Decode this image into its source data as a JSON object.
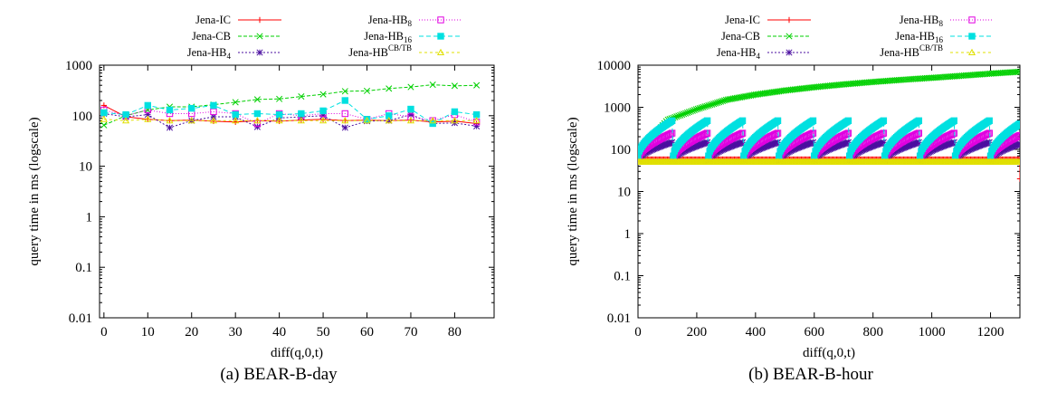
{
  "chart_data": [
    {
      "type": "line",
      "caption": "(a) BEAR-B-day",
      "xlabel": "diff(q,0,t)",
      "ylabel": "query time in ms (logscale)",
      "y_scale": "log",
      "xlim": [
        -1,
        89
      ],
      "ylim": [
        0.01,
        1000
      ],
      "x_ticks": [
        "0",
        "10",
        "20",
        "30",
        "40",
        "50",
        "60",
        "70",
        "80"
      ],
      "y_ticks": [
        "0.01",
        "0.1",
        "1",
        "10",
        "100",
        "1000"
      ],
      "legend_placement": "top (outside plot)",
      "x": [
        0,
        5,
        10,
        15,
        20,
        25,
        30,
        35,
        40,
        45,
        50,
        55,
        60,
        65,
        70,
        75,
        80,
        85
      ],
      "series": [
        {
          "name": "Jena-IC",
          "color": "#ff0000",
          "marker": "plus",
          "values": [
            160,
            95,
            85,
            80,
            82,
            78,
            75,
            80,
            78,
            82,
            85,
            80,
            82,
            80,
            82,
            75,
            78,
            70
          ]
        },
        {
          "name": "Jena-CB",
          "color": "#00d000",
          "marker": "cross",
          "values": [
            65,
            100,
            130,
            150,
            150,
            165,
            185,
            210,
            215,
            240,
            265,
            305,
            310,
            345,
            370,
            410,
            390,
            400
          ]
        },
        {
          "name": "Jena-HB4",
          "color": "#4b0fa0",
          "marker": "star",
          "values": [
            110,
            95,
            105,
            58,
            80,
            95,
            95,
            60,
            90,
            95,
            100,
            58,
            78,
            80,
            105,
            70,
            72,
            62
          ]
        },
        {
          "name": "Jena-HB8",
          "color": "#e000e0",
          "marker": "square-open",
          "values": [
            130,
            100,
            130,
            110,
            110,
            120,
            110,
            70,
            110,
            100,
            110,
            110,
            85,
            110,
            95,
            80,
            105,
            75
          ]
        },
        {
          "name": "Jena-HB16",
          "color": "#00e0e0",
          "marker": "square-filled",
          "values": [
            115,
            105,
            160,
            130,
            140,
            160,
            105,
            110,
            105,
            110,
            125,
            200,
            85,
            100,
            135,
            70,
            120,
            105
          ]
        },
        {
          "name": "Jena-HB",
          "superscript": "CB/TB",
          "color": "#e0e000",
          "marker": "triangle",
          "values": [
            85,
            80,
            85,
            80,
            80,
            80,
            80,
            80,
            80,
            80,
            80,
            80,
            80,
            80,
            80,
            80,
            80,
            80
          ]
        }
      ]
    },
    {
      "type": "line",
      "caption": "(b) BEAR-B-hour",
      "xlabel": "diff(q,0,t)",
      "ylabel": "query time in ms (logscale)",
      "y_scale": "log",
      "xlim": [
        0,
        1300
      ],
      "ylim": [
        0.01,
        10000
      ],
      "x_ticks": [
        "0",
        "200",
        "400",
        "600",
        "800",
        "1000",
        "1200"
      ],
      "y_ticks": [
        "0.01",
        "0.1",
        "1",
        "10",
        "100",
        "1000",
        "10000"
      ],
      "legend_placement": "top (outside plot)",
      "sawtooth_period": 120,
      "series": [
        {
          "name": "Jena-IC",
          "color": "#ff0000",
          "marker": "plus",
          "baseline": 58,
          "peak": 58,
          "end_drop": 20
        },
        {
          "name": "Jena-CB",
          "color": "#00d000",
          "marker": "cross",
          "points": [
            [
              0,
              55
            ],
            [
              50,
              200
            ],
            [
              100,
              500
            ],
            [
              200,
              900
            ],
            [
              300,
              1500
            ],
            [
              400,
              2000
            ],
            [
              500,
              2500
            ],
            [
              600,
              3000
            ],
            [
              700,
              3500
            ],
            [
              800,
              4000
            ],
            [
              900,
              4500
            ],
            [
              1000,
              5000
            ],
            [
              1100,
              5600
            ],
            [
              1200,
              6300
            ],
            [
              1300,
              7000
            ]
          ]
        },
        {
          "name": "Jena-HB4",
          "color": "#4b0fa0",
          "marker": "star",
          "baseline": 55,
          "peak": 150
        },
        {
          "name": "Jena-HB8",
          "color": "#e000e0",
          "marker": "square-open",
          "baseline": 60,
          "peak": 250
        },
        {
          "name": "Jena-HB16",
          "color": "#00e0e0",
          "marker": "square-filled",
          "baseline": 70,
          "peak": 500
        },
        {
          "name": "Jena-HB",
          "superscript": "CB/TB",
          "color": "#e0e000",
          "marker": "triangle",
          "baseline": 50,
          "peak": 50
        }
      ]
    }
  ]
}
